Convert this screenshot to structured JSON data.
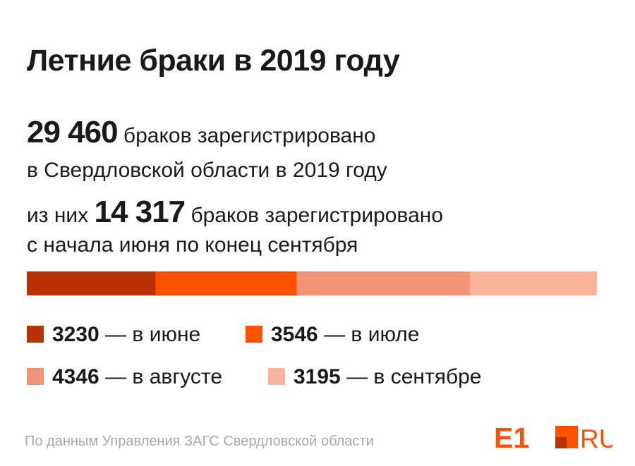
{
  "title": "Летние браки в 2019 году",
  "summary": {
    "total_value": "29 460",
    "total_text": "браков зарегистрировано",
    "total_text2": "в Свердловской области в 2019 году",
    "summer_prefix": "из них",
    "summer_value": "14 317",
    "summer_text": "браков зарегистрировано",
    "summer_text2": "с начала июня по конец сентября"
  },
  "chart_data": {
    "type": "bar",
    "stacked": true,
    "orientation": "horizontal",
    "categories": [
      "в июне",
      "в июле",
      "в августе",
      "в сентябре"
    ],
    "values": [
      3230,
      3546,
      4346,
      3195
    ],
    "colors": [
      "#b83206",
      "#fd5100",
      "#f19376",
      "#fbb39c"
    ],
    "total": 14317
  },
  "legend": [
    {
      "value": "3230",
      "label": "— в июне",
      "color": "#b83206"
    },
    {
      "value": "3546",
      "label": "— в июле",
      "color": "#fd5100"
    },
    {
      "value": "4346",
      "label": "— в августе",
      "color": "#f19376"
    },
    {
      "value": "3195",
      "label": "— в сентябре",
      "color": "#fbb39c"
    }
  ],
  "footnote": "По данным Управления ЗАГС Свердловской области",
  "logo": {
    "text_e1": "E1",
    "text_ru": "RU",
    "color": "#fd5100"
  }
}
